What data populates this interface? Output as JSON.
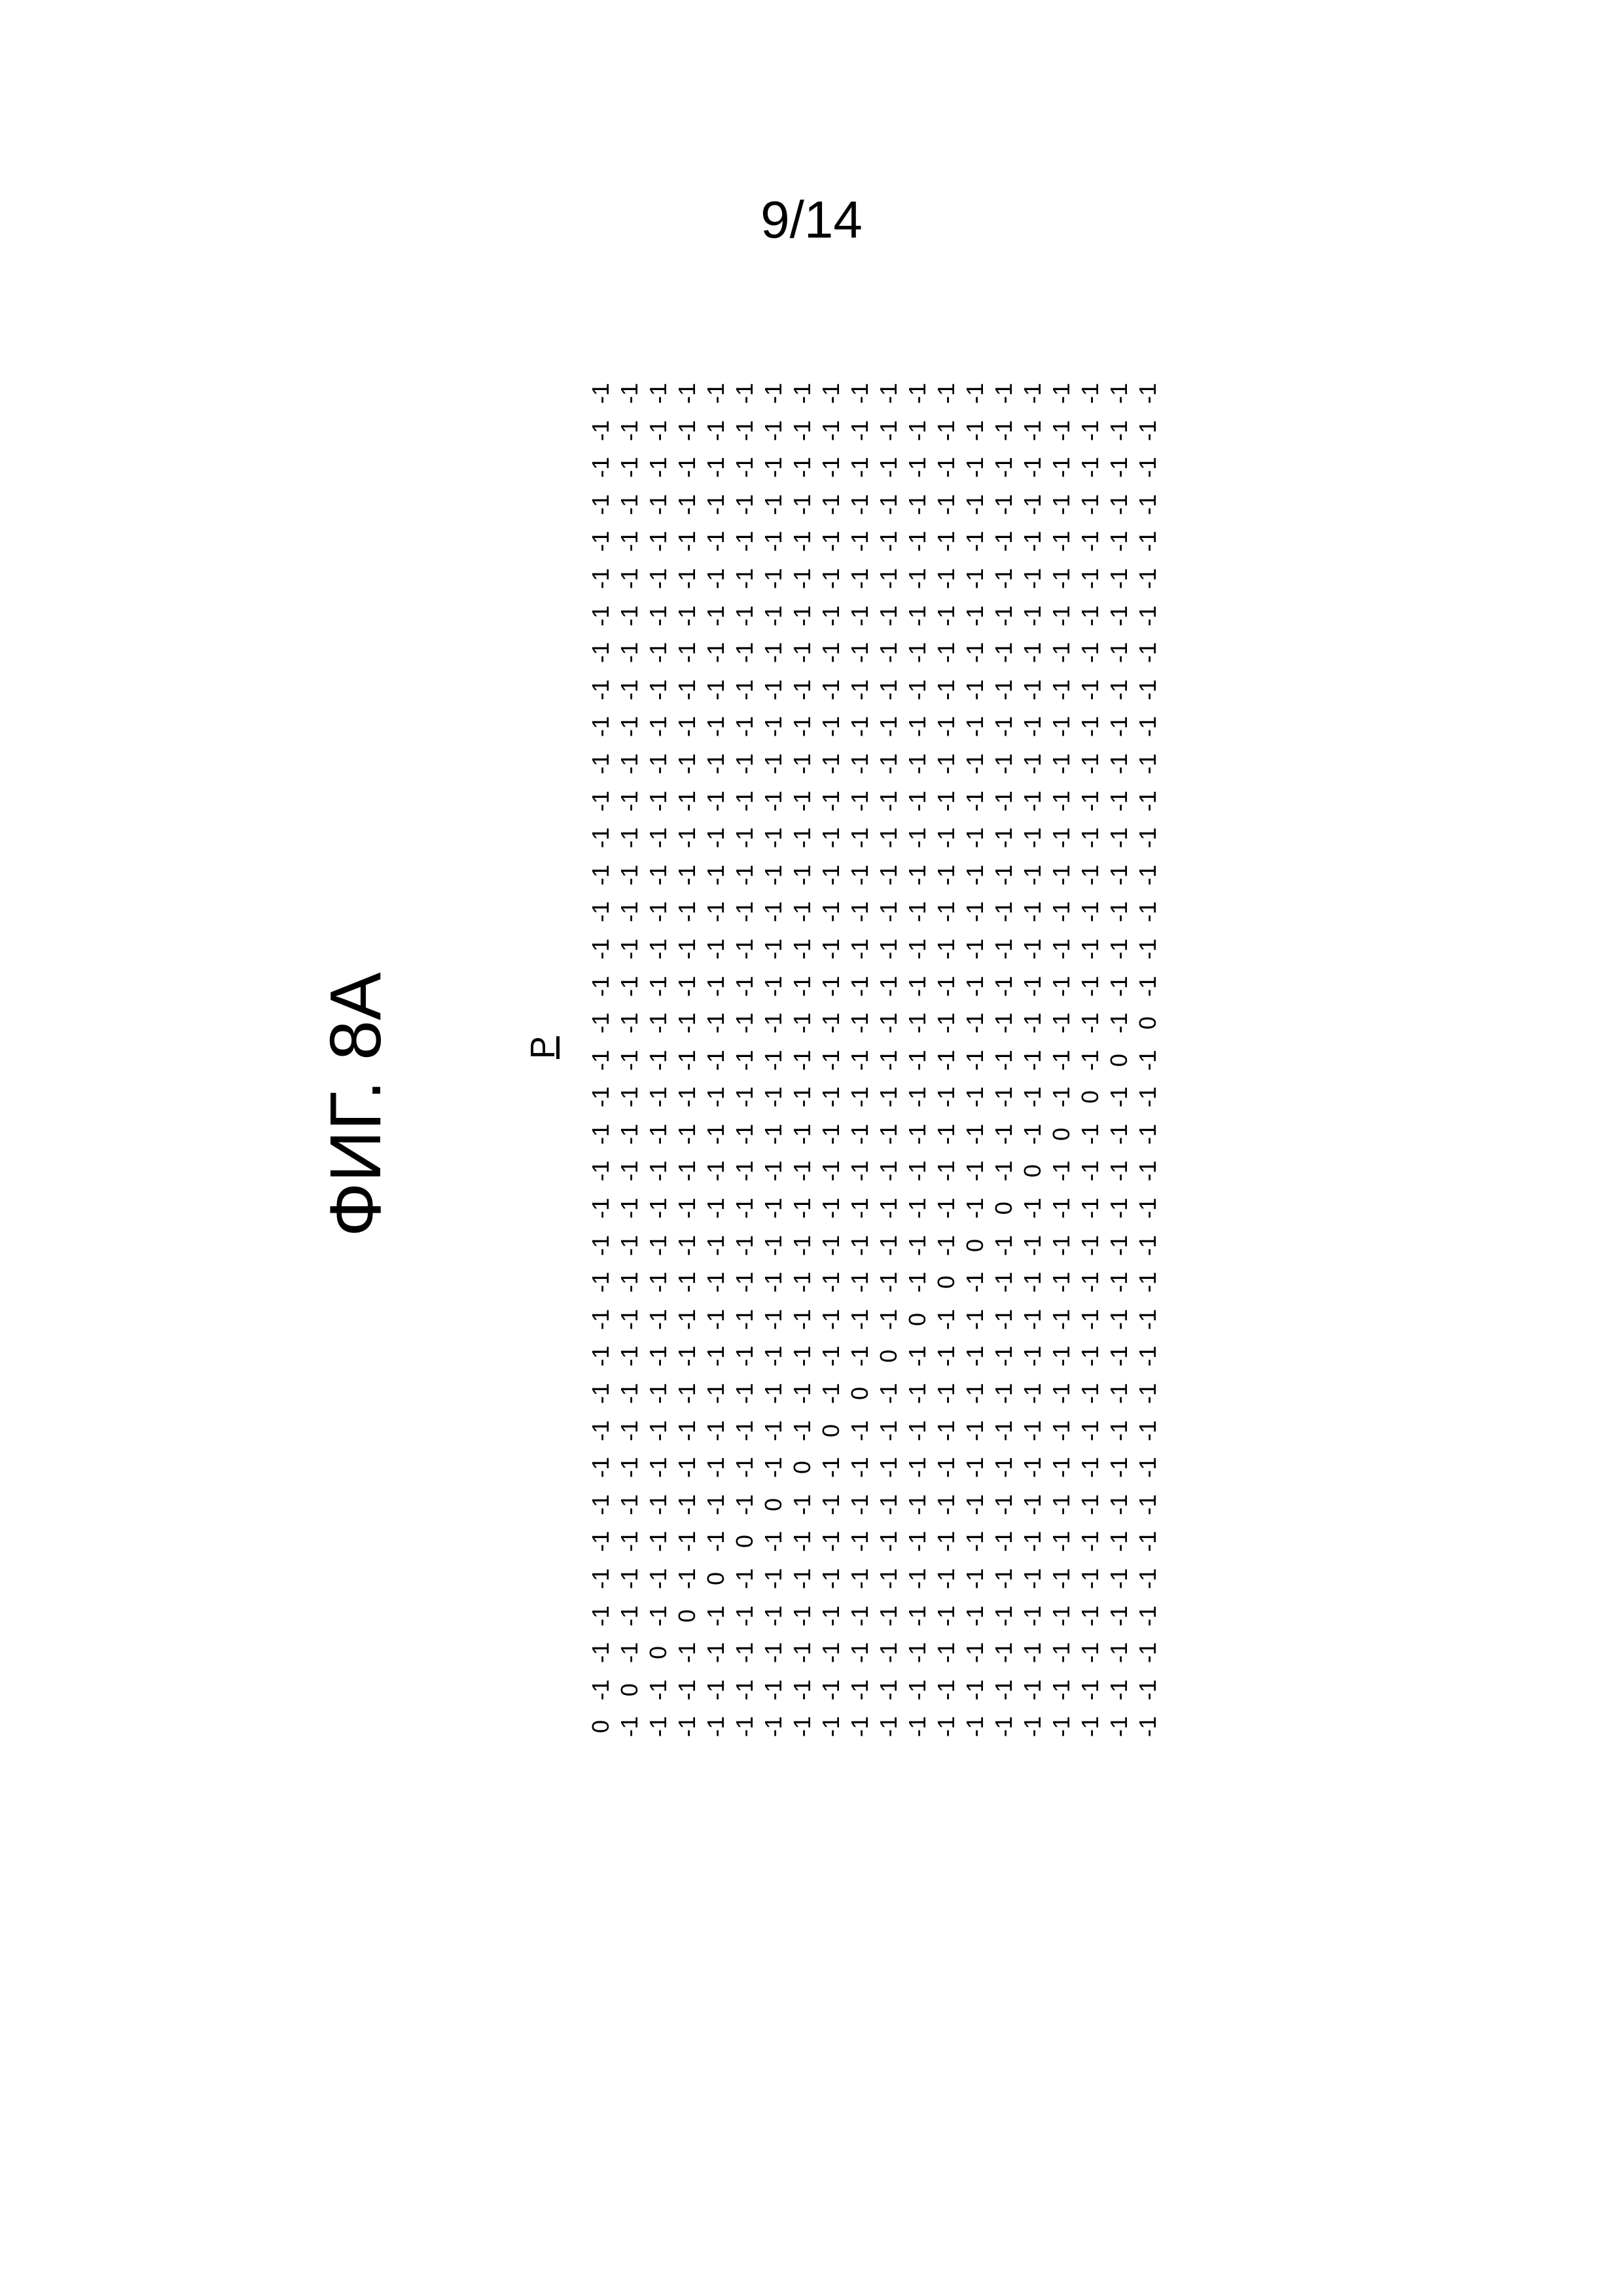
{
  "page_number": "9/14",
  "figure_label": "ФИГ. 8А",
  "matrix_label": "P",
  "matrix": {
    "n_rows": 35,
    "n_cols": 20,
    "values": [
      [
        "-1",
        "-1",
        "-1",
        "-1",
        "-1",
        "-1",
        "-1",
        "-1",
        "-1",
        "-1",
        "-1",
        "-1",
        "-1",
        "-1",
        "-1",
        "-1",
        "-1",
        "-1",
        "-1",
        "-1"
      ],
      [
        "-1",
        "-1",
        "-1",
        "-1",
        "-1",
        "-1",
        "-1",
        "-1",
        "-1",
        "-1",
        "-1",
        "-1",
        "-1",
        "-1",
        "-1",
        "-1",
        "-1",
        "-1",
        "-1",
        "-1"
      ],
      [
        "-1",
        "-1",
        "-1",
        "-1",
        "-1",
        "-1",
        "-1",
        "-1",
        "-1",
        "-1",
        "-1",
        "-1",
        "-1",
        "-1",
        "-1",
        "-1",
        "-1",
        "-1",
        "-1",
        "-1"
      ],
      [
        "-1",
        "-1",
        "-1",
        "-1",
        "-1",
        "-1",
        "-1",
        "-1",
        "-1",
        "-1",
        "-1",
        "-1",
        "-1",
        "-1",
        "-1",
        "-1",
        "-1",
        "-1",
        "-1",
        "-1"
      ],
      [
        "-1",
        "-1",
        "-1",
        "-1",
        "-1",
        "-1",
        "-1",
        "-1",
        "-1",
        "-1",
        "-1",
        "-1",
        "-1",
        "-1",
        "-1",
        "-1",
        "-1",
        "-1",
        "-1",
        "-1"
      ],
      [
        "-1",
        "-1",
        "-1",
        "-1",
        "-1",
        "-1",
        "-1",
        "-1",
        "-1",
        "-1",
        "-1",
        "-1",
        "-1",
        "-1",
        "-1",
        "-1",
        "-1",
        "-1",
        "-1",
        "-1"
      ],
      [
        "-1",
        "-1",
        "-1",
        "-1",
        "-1",
        "-1",
        "-1",
        "-1",
        "-1",
        "-1",
        "-1",
        "-1",
        "-1",
        "-1",
        "-1",
        "-1",
        "-1",
        "-1",
        "-1",
        "-1"
      ],
      [
        "-1",
        "-1",
        "-1",
        "-1",
        "-1",
        "-1",
        "-1",
        "-1",
        "-1",
        "-1",
        "-1",
        "-1",
        "-1",
        "-1",
        "-1",
        "-1",
        "-1",
        "-1",
        "-1",
        "-1"
      ],
      [
        "-1",
        "-1",
        "-1",
        "-1",
        "-1",
        "-1",
        "-1",
        "-1",
        "-1",
        "-1",
        "-1",
        "-1",
        "-1",
        "-1",
        "-1",
        "-1",
        "-1",
        "-1",
        "-1",
        "-1"
      ],
      [
        "-1",
        "-1",
        "-1",
        "-1",
        "-1",
        "-1",
        "-1",
        "-1",
        "-1",
        "-1",
        "-1",
        "-1",
        "-1",
        "-1",
        "-1",
        "-1",
        "-1",
        "-1",
        "-1",
        "-1"
      ],
      [
        "-1",
        "-1",
        "-1",
        "-1",
        "-1",
        "-1",
        "-1",
        "-1",
        "-1",
        "-1",
        "-1",
        "-1",
        "-1",
        "-1",
        "-1",
        "-1",
        "-1",
        "-1",
        "-1",
        "-1"
      ],
      [
        "-1",
        "-1",
        "-1",
        "-1",
        "-1",
        "-1",
        "-1",
        "-1",
        "-1",
        "-1",
        "-1",
        "-1",
        "-1",
        "-1",
        "-1",
        "-1",
        "-1",
        "-1",
        "-1",
        "-1"
      ],
      [
        "-1",
        "-1",
        "-1",
        "-1",
        "-1",
        "-1",
        "-1",
        "-1",
        "-1",
        "-1",
        "-1",
        "-1",
        "-1",
        "-1",
        "-1",
        "-1",
        "-1",
        "-1",
        "-1",
        "-1"
      ],
      [
        "-1",
        "-1",
        "-1",
        "-1",
        "-1",
        "-1",
        "-1",
        "-1",
        "-1",
        "-1",
        "-1",
        "-1",
        "-1",
        "-1",
        "-1",
        "-1",
        "-1",
        "-1",
        "-1",
        "-1"
      ],
      [
        "-1",
        "-1",
        "-1",
        "-1",
        "-1",
        "-1",
        "-1",
        "-1",
        "-1",
        "-1",
        "-1",
        "-1",
        "-1",
        "-1",
        "-1",
        "-1",
        "-1",
        "-1",
        "-1",
        "-1"
      ],
      [
        "-1",
        "-1",
        "-1",
        "-1",
        "-1",
        "-1",
        "-1",
        "-1",
        "-1",
        "-1",
        "-1",
        "-1",
        "-1",
        "-1",
        "-1",
        "-1",
        "-1",
        "-1",
        "-1",
        "-1"
      ],
      [
        "-1",
        "-1",
        "-1",
        "-1",
        "-1",
        "-1",
        "-1",
        "-1",
        "-1",
        "-1",
        "-1",
        "-1",
        "-1",
        "-1",
        "-1",
        "-1",
        "-1",
        "-1",
        "-1",
        "-1"
      ],
      [
        "-1",
        "-1",
        "-1",
        "-1",
        "-1",
        "-1",
        "-1",
        "-1",
        "-1",
        "-1",
        "-1",
        "-1",
        "-1",
        "-1",
        "-1",
        "-1",
        "-1",
        "-1",
        "-1",
        "0"
      ],
      [
        "-1",
        "-1",
        "-1",
        "-1",
        "-1",
        "-1",
        "-1",
        "-1",
        "-1",
        "-1",
        "-1",
        "-1",
        "-1",
        "-1",
        "-1",
        "-1",
        "-1",
        "-1",
        "0",
        "-1"
      ],
      [
        "-1",
        "-1",
        "-1",
        "-1",
        "-1",
        "-1",
        "-1",
        "-1",
        "-1",
        "-1",
        "-1",
        "-1",
        "-1",
        "-1",
        "-1",
        "-1",
        "-1",
        "0",
        "-1",
        "-1"
      ],
      [
        "-1",
        "-1",
        "-1",
        "-1",
        "-1",
        "-1",
        "-1",
        "-1",
        "-1",
        "-1",
        "-1",
        "-1",
        "-1",
        "-1",
        "-1",
        "-1",
        "0",
        "-1",
        "-1",
        "-1"
      ],
      [
        "-1",
        "-1",
        "-1",
        "-1",
        "-1",
        "-1",
        "-1",
        "-1",
        "-1",
        "-1",
        "-1",
        "-1",
        "-1",
        "-1",
        "-1",
        "0",
        "-1",
        "-1",
        "-1",
        "-1"
      ],
      [
        "-1",
        "-1",
        "-1",
        "-1",
        "-1",
        "-1",
        "-1",
        "-1",
        "-1",
        "-1",
        "-1",
        "-1",
        "-1",
        "-1",
        "0",
        "-1",
        "-1",
        "-1",
        "-1",
        "-1"
      ],
      [
        "-1",
        "-1",
        "-1",
        "-1",
        "-1",
        "-1",
        "-1",
        "-1",
        "-1",
        "-1",
        "-1",
        "-1",
        "-1",
        "0",
        "-1",
        "-1",
        "-1",
        "-1",
        "-1",
        "-1"
      ],
      [
        "-1",
        "-1",
        "-1",
        "-1",
        "-1",
        "-1",
        "-1",
        "-1",
        "-1",
        "-1",
        "-1",
        "-1",
        "0",
        "-1",
        "-1",
        "-1",
        "-1",
        "-1",
        "-1",
        "-1"
      ],
      [
        "-1",
        "-1",
        "-1",
        "-1",
        "-1",
        "-1",
        "-1",
        "-1",
        "-1",
        "-1",
        "-1",
        "0",
        "-1",
        "-1",
        "-1",
        "-1",
        "-1",
        "-1",
        "-1",
        "-1"
      ],
      [
        "-1",
        "-1",
        "-1",
        "-1",
        "-1",
        "-1",
        "-1",
        "-1",
        "-1",
        "-1",
        "0",
        "-1",
        "-1",
        "-1",
        "-1",
        "-1",
        "-1",
        "-1",
        "-1",
        "-1"
      ],
      [
        "-1",
        "-1",
        "-1",
        "-1",
        "-1",
        "-1",
        "-1",
        "-1",
        "-1",
        "0",
        "-1",
        "-1",
        "-1",
        "-1",
        "-1",
        "-1",
        "-1",
        "-1",
        "-1",
        "-1"
      ],
      [
        "-1",
        "-1",
        "-1",
        "-1",
        "-1",
        "-1",
        "-1",
        "-1",
        "0",
        "-1",
        "-1",
        "-1",
        "-1",
        "-1",
        "-1",
        "-1",
        "-1",
        "-1",
        "-1",
        "-1"
      ],
      [
        "-1",
        "-1",
        "-1",
        "-1",
        "-1",
        "-1",
        "-1",
        "0",
        "-1",
        "-1",
        "-1",
        "-1",
        "-1",
        "-1",
        "-1",
        "-1",
        "-1",
        "-1",
        "-1",
        "-1"
      ],
      [
        "-1",
        "-1",
        "-1",
        "-1",
        "-1",
        "-1",
        "0",
        "-1",
        "-1",
        "-1",
        "-1",
        "-1",
        "-1",
        "-1",
        "-1",
        "-1",
        "-1",
        "-1",
        "-1",
        "-1"
      ],
      [
        "-1",
        "-1",
        "-1",
        "-1",
        "-1",
        "0",
        "-1",
        "-1",
        "-1",
        "-1",
        "-1",
        "-1",
        "-1",
        "-1",
        "-1",
        "-1",
        "-1",
        "-1",
        "-1",
        "-1"
      ],
      [
        "-1",
        "-1",
        "-1",
        "-1",
        "0",
        "-1",
        "-1",
        "-1",
        "-1",
        "-1",
        "-1",
        "-1",
        "-1",
        "-1",
        "-1",
        "-1",
        "-1",
        "-1",
        "-1",
        "-1"
      ],
      [
        "-1",
        "-1",
        "-1",
        "0",
        "-1",
        "-1",
        "-1",
        "-1",
        "-1",
        "-1",
        "-1",
        "-1",
        "-1",
        "-1",
        "-1",
        "-1",
        "-1",
        "-1",
        "-1",
        "-1"
      ],
      [
        "-1",
        "-1",
        "0",
        "-1",
        "-1",
        "-1",
        "-1",
        "-1",
        "-1",
        "-1",
        "-1",
        "-1",
        "-1",
        "-1",
        "-1",
        "-1",
        "-1",
        "-1",
        "-1",
        "-1"
      ],
      [
        "-1",
        "0",
        "-1",
        "-1",
        "-1",
        "-1",
        "-1",
        "-1",
        "-1",
        "-1",
        "-1",
        "-1",
        "-1",
        "-1",
        "-1",
        "-1",
        "-1",
        "-1",
        "-1",
        "-1"
      ],
      [
        "0",
        "-1",
        "-1",
        "-1",
        "-1",
        "-1",
        "-1",
        "-1",
        "-1",
        "-1",
        "-1",
        "-1",
        "-1",
        "-1",
        "-1",
        "-1",
        "-1",
        "-1",
        "-1",
        "-1"
      ]
    ]
  },
  "style": {
    "font_family": "Arial, Helvetica, sans-serif",
    "text_color": "#000000",
    "background_color": "#ffffff",
    "page_number_fontsize": 80,
    "figure_label_fontsize": 110,
    "matrix_label_fontsize": 52,
    "matrix_cell_fontsize": 36
  }
}
